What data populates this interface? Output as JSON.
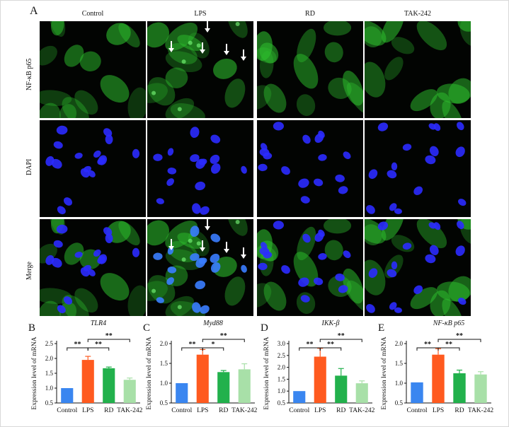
{
  "figure": {
    "panel_a": "A",
    "columns": [
      "Control",
      "LPS",
      "RD",
      "TAK-242"
    ],
    "rows": [
      "NF-κB p65",
      "DAPI",
      "Merge"
    ]
  },
  "colors": {
    "control": "#3a86f0",
    "lps": "#ff5a1f",
    "rd": "#22b14c",
    "tak242": "#a8e0a8",
    "green_stain": "#2ec02e",
    "dapi": "#2b2bff"
  },
  "chart_data": [
    {
      "panel": "B",
      "type": "bar",
      "title": "TLR4",
      "ylabel": "Expression level of mRNA",
      "categories": [
        "Control",
        "LPS",
        "RD",
        "TAK-242"
      ],
      "values": [
        1.0,
        1.95,
        1.67,
        1.28
      ],
      "errors": [
        0.0,
        0.12,
        0.04,
        0.06
      ],
      "ylim": [
        0.5,
        2.5
      ],
      "yticks": [
        "0.5",
        "1.0",
        "1.5",
        "2.0",
        "2.5"
      ],
      "significance": [
        "**",
        "**",
        "**"
      ]
    },
    {
      "panel": "C",
      "type": "bar",
      "title": "Myd88",
      "ylabel": "Expression level of mRNA",
      "categories": [
        "Control",
        "LPS",
        "RD",
        "TAK-242"
      ],
      "values": [
        1.0,
        1.72,
        1.28,
        1.35
      ],
      "errors": [
        0.0,
        0.13,
        0.04,
        0.14
      ],
      "ylim": [
        0.5,
        2.0
      ],
      "yticks": [
        "0.5",
        "1.0",
        "1.5",
        "2.0"
      ],
      "significance": [
        "**",
        "*",
        "**"
      ]
    },
    {
      "panel": "D",
      "type": "bar",
      "title": "IKK-β",
      "ylabel": "Expression level of mRNA",
      "categories": [
        "Control",
        "LPS",
        "RD",
        "TAK-242"
      ],
      "values": [
        1.0,
        2.45,
        1.65,
        1.33
      ],
      "errors": [
        0.0,
        0.35,
        0.3,
        0.1
      ],
      "ylim": [
        0.5,
        3.0
      ],
      "yticks": [
        "0.5",
        "1.0",
        "1.5",
        "2.0",
        "2.5",
        "3.0"
      ],
      "significance": [
        "**",
        "**",
        "**"
      ]
    },
    {
      "panel": "E",
      "type": "bar",
      "title": "NF-κB p65",
      "ylabel": "Expression level of mRNA",
      "categories": [
        "Control",
        "LPS",
        "RD",
        "TAK-242"
      ],
      "values": [
        1.02,
        1.72,
        1.25,
        1.22
      ],
      "errors": [
        0.0,
        0.15,
        0.08,
        0.07
      ],
      "ylim": [
        0.5,
        2.0
      ],
      "yticks": [
        "0.5",
        "1.0",
        "1.5",
        "2.0"
      ],
      "significance": [
        "**",
        "**",
        "**"
      ]
    }
  ]
}
